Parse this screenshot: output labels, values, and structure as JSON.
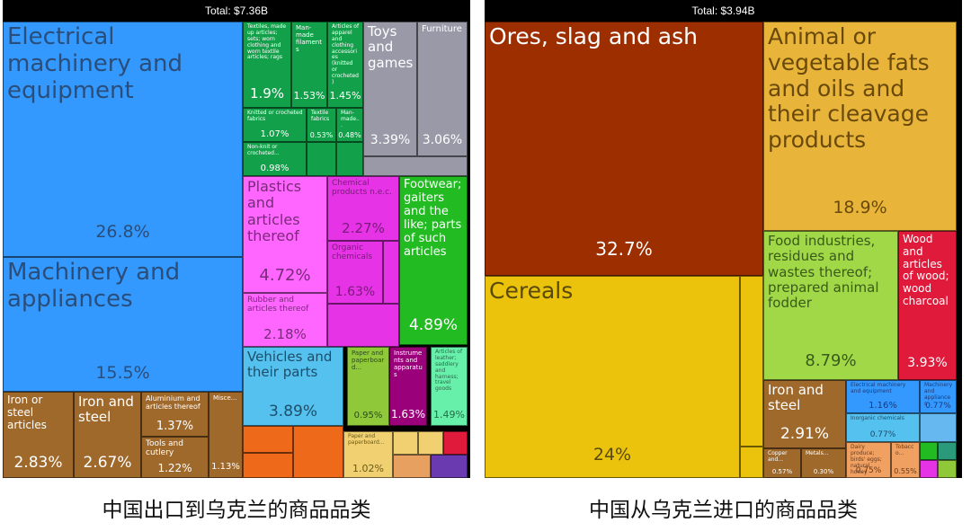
{
  "captions": {
    "left": "中国出口到乌克兰的商品品类",
    "right": "中国从乌克兰进口的商品品类"
  },
  "chart_data": [
    {
      "type": "treemap",
      "total_label": "Total: $7.36B",
      "items": [
        {
          "name": "Electrical machinery and equipment",
          "percent": "26.8%",
          "color": "#3399ff",
          "text": "#2a4d7a"
        },
        {
          "name": "Machinery and appliances",
          "percent": "15.5%",
          "color": "#3399ff",
          "text": "#2a4d7a"
        },
        {
          "name": "Iron or steel articles",
          "percent": "2.83%",
          "color": "#a0692c",
          "text": "#ffffff"
        },
        {
          "name": "Iron and steel",
          "percent": "2.67%",
          "color": "#a0692c",
          "text": "#ffffff"
        },
        {
          "name": "Aluminium and articles thereof",
          "percent": "1.37%",
          "color": "#a0692c",
          "text": "#ffffff"
        },
        {
          "name": "Tools and cutlery",
          "percent": "1.22%",
          "color": "#a0692c",
          "text": "#ffffff"
        },
        {
          "name": "Misce...",
          "percent": "1.13%",
          "color": "#a0692c",
          "text": "#ffffff"
        },
        {
          "name": "Textiles, made up articles; sets; worn clothing and worn textile articles; rags",
          "percent": "1.9%",
          "color": "#13a04a",
          "text": "#ffffff"
        },
        {
          "name": "Man-made filaments",
          "percent": "1.53%",
          "color": "#13a04a",
          "text": "#ffffff"
        },
        {
          "name": "Articles of apparel and clothing accessories (knitted or crocheted)",
          "percent": "1.45%",
          "color": "#13a04a",
          "text": "#ffffff"
        },
        {
          "name": "Knitted or crocheted fabrics",
          "percent": "1.07%",
          "color": "#13a04a",
          "text": "#ffffff"
        },
        {
          "name": "Textile fabrics",
          "percent": "0.53%",
          "color": "#13a04a",
          "text": "#ffffff"
        },
        {
          "name": "Man-made...",
          "percent": "0.48%",
          "color": "#13a04a",
          "text": "#ffffff"
        },
        {
          "name": "Non-knit or crocheted...",
          "percent": "0.98%",
          "color": "#13a04a",
          "text": "#ffffff"
        },
        {
          "name": "Toys and games",
          "percent": "3.39%",
          "color": "#9a99a8",
          "text": "#ffffff"
        },
        {
          "name": "Furniture",
          "percent": "3.06%",
          "color": "#9a99a8",
          "text": "#ffffff"
        },
        {
          "name": "Plastics and articles thereof",
          "percent": "4.72%",
          "color": "#ff66ff",
          "text": "#7a2a7a"
        },
        {
          "name": "Rubber and articles thereof",
          "percent": "2.18%",
          "color": "#ff66ff",
          "text": "#7a2a7a"
        },
        {
          "name": "Chemical products n.e.c.",
          "percent": "2.27%",
          "color": "#e633e6",
          "text": "#7a1a7a"
        },
        {
          "name": "Organic chemicals",
          "percent": "1.63%",
          "color": "#e633e6",
          "text": "#7a1a7a"
        },
        {
          "name": "Footwear; gaiters and the like; parts of such articles",
          "percent": "4.89%",
          "color": "#22bb22",
          "text": "#ffffff"
        },
        {
          "name": "Vehicles and their parts",
          "percent": "3.89%",
          "color": "#55c1ee",
          "text": "#1e4d6a"
        },
        {
          "name": "Instruments and apparatus",
          "percent": "1.63%",
          "color": "#99007a",
          "text": "#ffffff"
        },
        {
          "name": "Articles of leather; saddlery and harness; travel goods",
          "percent": "1.49%",
          "color": "#66f0aa",
          "text": "#2a6a4a"
        },
        {
          "name": "Paper and paperboard...",
          "percent": "0.95%",
          "color": "#8fc93a",
          "text": "#2a4a1a"
        },
        {
          "name": "Paper and paperboard...",
          "percent": "1.02%",
          "color": "#f0d070",
          "text": "#6a5a1a"
        }
      ]
    },
    {
      "type": "treemap",
      "total_label": "Total: $3.94B",
      "items": [
        {
          "name": "Ores, slag and ash",
          "percent": "32.7%",
          "color": "#9c2e00",
          "text": "#ffffff"
        },
        {
          "name": "Cereals",
          "percent": "24%",
          "color": "#ebc30d",
          "text": "#5a4a0a"
        },
        {
          "name": "Animal or vegetable fats and oils and their cleavage products",
          "percent": "18.9%",
          "color": "#e8b43a",
          "text": "#6a4a0a"
        },
        {
          "name": "Food industries, residues and wastes thereof; prepared animal fodder",
          "percent": "8.79%",
          "color": "#a0d848",
          "text": "#3a5a1a"
        },
        {
          "name": "Wood and articles of wood; wood charcoal",
          "percent": "3.93%",
          "color": "#e01a3a",
          "text": "#ffffff"
        },
        {
          "name": "Iron and steel",
          "percent": "2.91%",
          "color": "#a0692c",
          "text": "#ffffff"
        },
        {
          "name": "Copper and...",
          "percent": "0.57%",
          "color": "#a0692c",
          "text": "#ffffff"
        },
        {
          "name": "Metals...",
          "percent": "0.30%",
          "color": "#a0692c",
          "text": "#ffffff"
        },
        {
          "name": "Electrical machinery and equipment",
          "percent": "1.16%",
          "color": "#3399ff",
          "text": "#1a3a7a"
        },
        {
          "name": "Machinery and appliances",
          "percent": "0.77%",
          "color": "#3399ff",
          "text": "#1a3a7a"
        },
        {
          "name": "Inorganic chemicals",
          "percent": "0.77%",
          "color": "#55c1ee",
          "text": "#1a4a6a"
        },
        {
          "name": "Dairy produce; birds' eggs; natural honey",
          "percent": "0.75%",
          "color": "#f0a060",
          "text": "#6a3a1a"
        },
        {
          "name": "Tobacco...",
          "percent": "0.55%",
          "color": "#f0a060",
          "text": "#6a3a1a"
        }
      ]
    }
  ]
}
